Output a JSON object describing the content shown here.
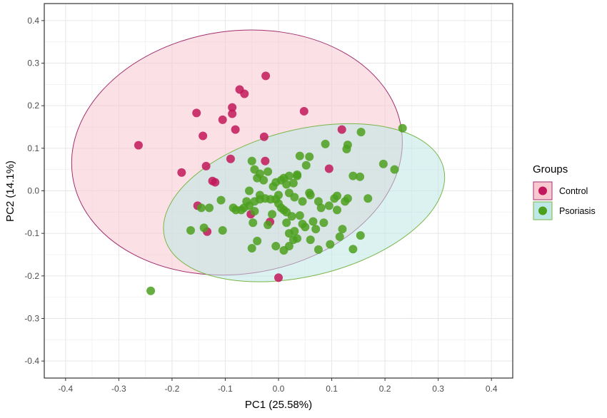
{
  "chart_data": {
    "type": "scatter",
    "xlabel": "PC1 (25.58%)",
    "ylabel": "PC2 (14.1%)",
    "xlim": [
      -0.44,
      0.44
    ],
    "ylim": [
      -0.44,
      0.44
    ],
    "x_ticks": [
      -0.4,
      -0.3,
      -0.2,
      -0.1,
      0.0,
      0.1,
      0.2,
      0.3,
      0.4
    ],
    "y_ticks": [
      -0.4,
      -0.3,
      -0.2,
      -0.1,
      0.0,
      0.1,
      0.2,
      0.3,
      0.4
    ],
    "x_tick_labels": [
      "-0.4",
      "-0.3",
      "-0.2",
      "-0.1",
      "0.0",
      "0.1",
      "0.2",
      "0.3",
      "0.4"
    ],
    "y_tick_labels": [
      "-0.4",
      "-0.3",
      "-0.2",
      "-0.1",
      "0.0",
      "0.1",
      "0.2",
      "0.3",
      "0.4"
    ],
    "grid": true,
    "legend": {
      "title": "Groups",
      "position": "right"
    },
    "series": [
      {
        "name": "Control",
        "color": "#c2185b",
        "fill": "#f8c8d0",
        "ellipse_border": "#a0306e",
        "ellipse": {
          "cx": -0.078,
          "cy": 0.09,
          "rx": 0.312,
          "ry": 0.2855,
          "rotation_deg": -8
        },
        "points": [
          [
            -0.263,
            0.107
          ],
          [
            -0.182,
            0.043
          ],
          [
            -0.154,
            0.183
          ],
          [
            -0.142,
            0.129
          ],
          [
            -0.136,
            0.058
          ],
          [
            -0.124,
            0.023
          ],
          [
            -0.119,
            0.02
          ],
          [
            -0.105,
            0.167
          ],
          [
            -0.087,
            0.196
          ],
          [
            -0.087,
            0.181
          ],
          [
            -0.081,
            0.144
          ],
          [
            -0.073,
            0.238
          ],
          [
            -0.064,
            0.228
          ],
          [
            -0.024,
            0.27
          ],
          [
            -0.027,
            0.127
          ],
          [
            0.048,
            0.187
          ],
          [
            0.119,
            0.144
          ],
          [
            -0.09,
            0.075
          ],
          [
            -0.025,
            0.07
          ],
          [
            0.095,
            0.052
          ],
          [
            -0.152,
            -0.035
          ],
          [
            -0.134,
            -0.096
          ],
          [
            -0.052,
            -0.055
          ],
          [
            -0.016,
            -0.073
          ],
          [
            0.0,
            -0.204
          ]
        ]
      },
      {
        "name": "Psoriasis",
        "color": "#4ca01e",
        "fill": "#bde8e5",
        "ellipse_border": "#7ab648",
        "ellipse": {
          "cx": 0.048,
          "cy": -0.028,
          "rx": 0.27,
          "ry": 0.172,
          "rotation_deg": -14
        },
        "points": [
          [
            -0.24,
            -0.235
          ],
          [
            0.233,
            0.147
          ],
          [
            0.155,
            0.138
          ],
          [
            0.197,
            0.063
          ],
          [
            0.218,
            0.05
          ],
          [
            0.168,
            -0.018
          ],
          [
            0.154,
            -0.105
          ],
          [
            0.14,
            -0.137
          ],
          [
            0.115,
            -0.108
          ],
          [
            0.097,
            -0.126
          ],
          [
            0.153,
            0.033
          ],
          [
            0.14,
            0.035
          ],
          [
            0.13,
            0.108
          ],
          [
            0.128,
            0.098
          ],
          [
            0.088,
            0.11
          ],
          [
            0.058,
            0.08
          ],
          [
            0.04,
            0.082
          ],
          [
            0.052,
            0.06
          ],
          [
            0.035,
            0.035
          ],
          [
            0.02,
            0.035
          ],
          [
            0.01,
            0.03
          ],
          [
            0.005,
            0.025
          ],
          [
            -0.005,
            0.02
          ],
          [
            0.015,
            0.015
          ],
          [
            0.028,
            0.018
          ],
          [
            -0.05,
            0.07
          ],
          [
            -0.045,
            0.05
          ],
          [
            -0.035,
            0.04
          ],
          [
            -0.02,
            0.045
          ],
          [
            -0.04,
            0.03
          ],
          [
            -0.028,
            0.025
          ],
          [
            -0.055,
            0.0
          ],
          [
            -0.06,
            -0.025
          ],
          [
            -0.065,
            -0.04
          ],
          [
            -0.07,
            -0.045
          ],
          [
            -0.055,
            -0.035
          ],
          [
            -0.045,
            -0.025
          ],
          [
            -0.035,
            -0.02
          ],
          [
            -0.025,
            -0.018
          ],
          [
            -0.015,
            -0.02
          ],
          [
            -0.005,
            -0.02
          ],
          [
            0.0,
            -0.03
          ],
          [
            0.005,
            -0.04
          ],
          [
            0.01,
            -0.045
          ],
          [
            0.015,
            -0.05
          ],
          [
            0.02,
            -0.005
          ],
          [
            0.03,
            -0.015
          ],
          [
            0.045,
            -0.025
          ],
          [
            0.06,
            -0.01
          ],
          [
            0.058,
            -0.005
          ],
          [
            0.075,
            -0.025
          ],
          [
            0.08,
            -0.04
          ],
          [
            0.095,
            -0.035
          ],
          [
            0.105,
            -0.018
          ],
          [
            0.13,
            -0.018
          ],
          [
            0.125,
            -0.025
          ],
          [
            0.11,
            -0.045
          ],
          [
            0.085,
            -0.075
          ],
          [
            0.065,
            -0.072
          ],
          [
            0.045,
            -0.078
          ],
          [
            0.03,
            -0.095
          ],
          [
            0.02,
            -0.1
          ],
          [
            0.015,
            -0.075
          ],
          [
            0.02,
            -0.13
          ],
          [
            0.028,
            -0.115
          ],
          [
            0.035,
            -0.112
          ],
          [
            -0.005,
            -0.13
          ],
          [
            0.01,
            -0.14
          ],
          [
            0.075,
            -0.138
          ],
          [
            0.06,
            -0.115
          ],
          [
            -0.08,
            -0.045
          ],
          [
            -0.085,
            -0.04
          ],
          [
            -0.108,
            -0.022
          ],
          [
            -0.13,
            -0.04
          ],
          [
            -0.145,
            -0.04
          ],
          [
            -0.165,
            -0.093
          ],
          [
            -0.14,
            -0.087
          ],
          [
            -0.105,
            -0.093
          ],
          [
            -0.048,
            -0.075
          ],
          [
            -0.04,
            -0.118
          ],
          [
            -0.05,
            -0.135
          ],
          [
            -0.035,
            -0.01
          ],
          [
            -0.01,
            0.01
          ],
          [
            0.035,
            0.038
          ],
          [
            0.05,
            -0.085
          ],
          [
            0.07,
            -0.09
          ],
          [
            0.12,
            -0.09
          ],
          [
            0.11,
            -0.012
          ],
          [
            0.0,
            -0.01
          ],
          [
            -0.045,
            -0.048
          ],
          [
            0.04,
            -0.058
          ],
          [
            -0.02,
            -0.08
          ],
          [
            0.025,
            -0.06
          ],
          [
            -0.012,
            -0.055
          ]
        ]
      }
    ]
  }
}
